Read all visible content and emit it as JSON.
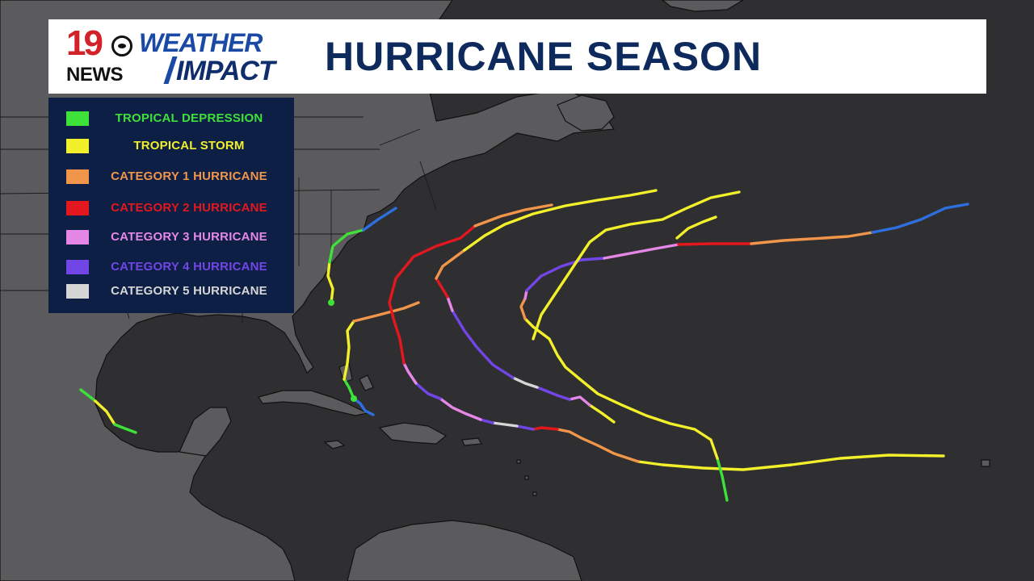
{
  "header": {
    "logo_number": "19",
    "logo_news": "NEWS",
    "logo_weather": "WEATHER",
    "logo_impact": "IMPACT",
    "title": "HURRICANE SEASON"
  },
  "legend": [
    {
      "label": "TROPICAL DEPRESSION",
      "color": "#3ee03a"
    },
    {
      "label": "TROPICAL STORM",
      "color": "#f2ef2b"
    },
    {
      "label": "CATEGORY 1 HURRICANE",
      "color": "#f0954a"
    },
    {
      "label": "CATEGORY 2 HURRICANE",
      "color": "#e3171e"
    },
    {
      "label": "CATEGORY 3 HURRICANE",
      "color": "#e487e7"
    },
    {
      "label": "CATEGORY 4 HURRICANE",
      "color": "#7246e6"
    },
    {
      "label": "CATEGORY 5 HURRICANE",
      "color": "#d6d6d6"
    }
  ],
  "colors": {
    "td": "#3ee03a",
    "ts": "#f2ef2b",
    "cat1": "#f0954a",
    "cat2": "#e3171e",
    "cat3": "#e487e7",
    "cat4": "#7246e6",
    "cat5": "#d6d6d6",
    "ex": "#2e6fe0",
    "ocean": "#2f2f31",
    "land": "#5a5a5c",
    "coast": "#111111"
  }
}
